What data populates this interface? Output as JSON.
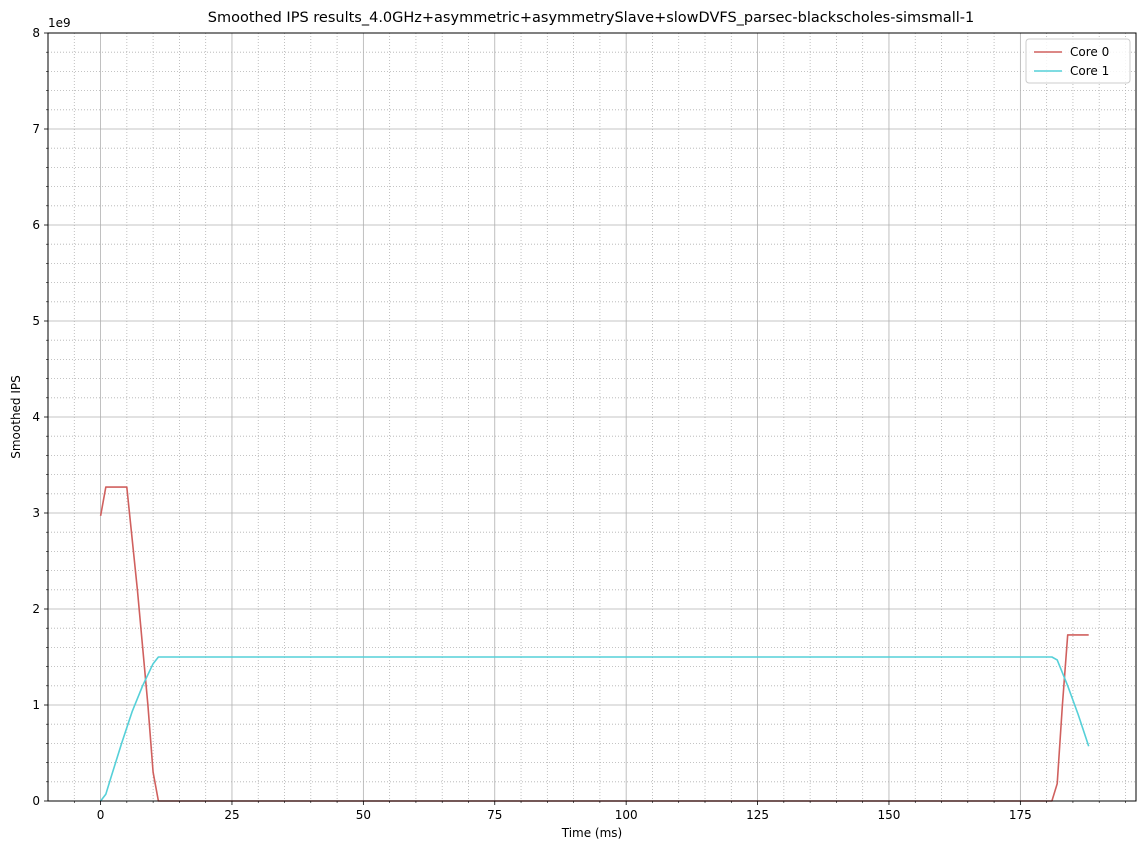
{
  "chart_data": {
    "type": "line",
    "title": "Smoothed IPS results_4.0GHz+asymmetric+asymmetrySlave+slowDVFS_parsec-blackscholes-simsmall-1",
    "xlabel": "Time (ms)",
    "ylabel": "Smoothed IPS",
    "y_offset_label": "1e9",
    "xlim": [
      -10,
      197
    ],
    "ylim": [
      0,
      8
    ],
    "x_ticks": [
      0,
      25,
      50,
      75,
      100,
      125,
      150,
      175
    ],
    "x_tick_labels": [
      "0",
      "25",
      "50",
      "75",
      "100",
      "125",
      "150",
      "175"
    ],
    "y_ticks": [
      0,
      1,
      2,
      3,
      4,
      5,
      6,
      7,
      8
    ],
    "y_tick_labels": [
      "0",
      "1",
      "2",
      "3",
      "4",
      "5",
      "6",
      "7",
      "8"
    ],
    "grid": true,
    "minor_grid": true,
    "legend_position": "top-right",
    "series": [
      {
        "name": "Core 0",
        "color": "#d0605e",
        "points": [
          [
            0,
            2.97
          ],
          [
            1,
            3.27
          ],
          [
            5,
            3.27
          ],
          [
            7,
            2.2
          ],
          [
            9,
            1.0
          ],
          [
            10,
            0.3
          ],
          [
            11,
            0.0
          ],
          [
            181,
            0.0
          ],
          [
            182,
            0.18
          ],
          [
            183,
            1.0
          ],
          [
            184,
            1.73
          ],
          [
            188,
            1.73
          ]
        ]
      },
      {
        "name": "Core 1",
        "color": "#55d0d8",
        "points": [
          [
            0,
            0.0
          ],
          [
            1,
            0.07
          ],
          [
            2,
            0.25
          ],
          [
            4,
            0.6
          ],
          [
            6,
            0.93
          ],
          [
            8,
            1.2
          ],
          [
            10,
            1.43
          ],
          [
            11,
            1.5
          ],
          [
            181,
            1.5
          ],
          [
            182,
            1.47
          ],
          [
            184,
            1.2
          ],
          [
            186,
            0.9
          ],
          [
            188,
            0.57
          ]
        ]
      }
    ]
  }
}
